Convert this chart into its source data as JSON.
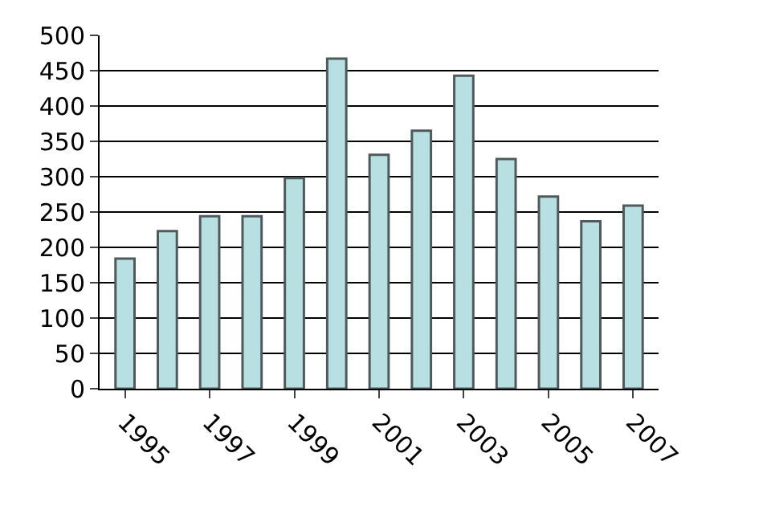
{
  "chart_data": {
    "type": "bar",
    "categories": [
      "1995",
      null,
      "1997",
      null,
      "1999",
      null,
      "2001",
      null,
      "2003",
      null,
      "2005",
      null,
      "2007"
    ],
    "values": [
      184,
      223,
      244,
      244,
      298,
      467,
      331,
      365,
      443,
      325,
      272,
      237,
      259
    ],
    "color": "#b8e0e2",
    "ylim": [
      0,
      500
    ],
    "yticks": [
      0,
      50,
      100,
      150,
      200,
      250,
      300,
      350,
      400,
      450,
      500
    ],
    "grid": "y",
    "legend": false
  }
}
